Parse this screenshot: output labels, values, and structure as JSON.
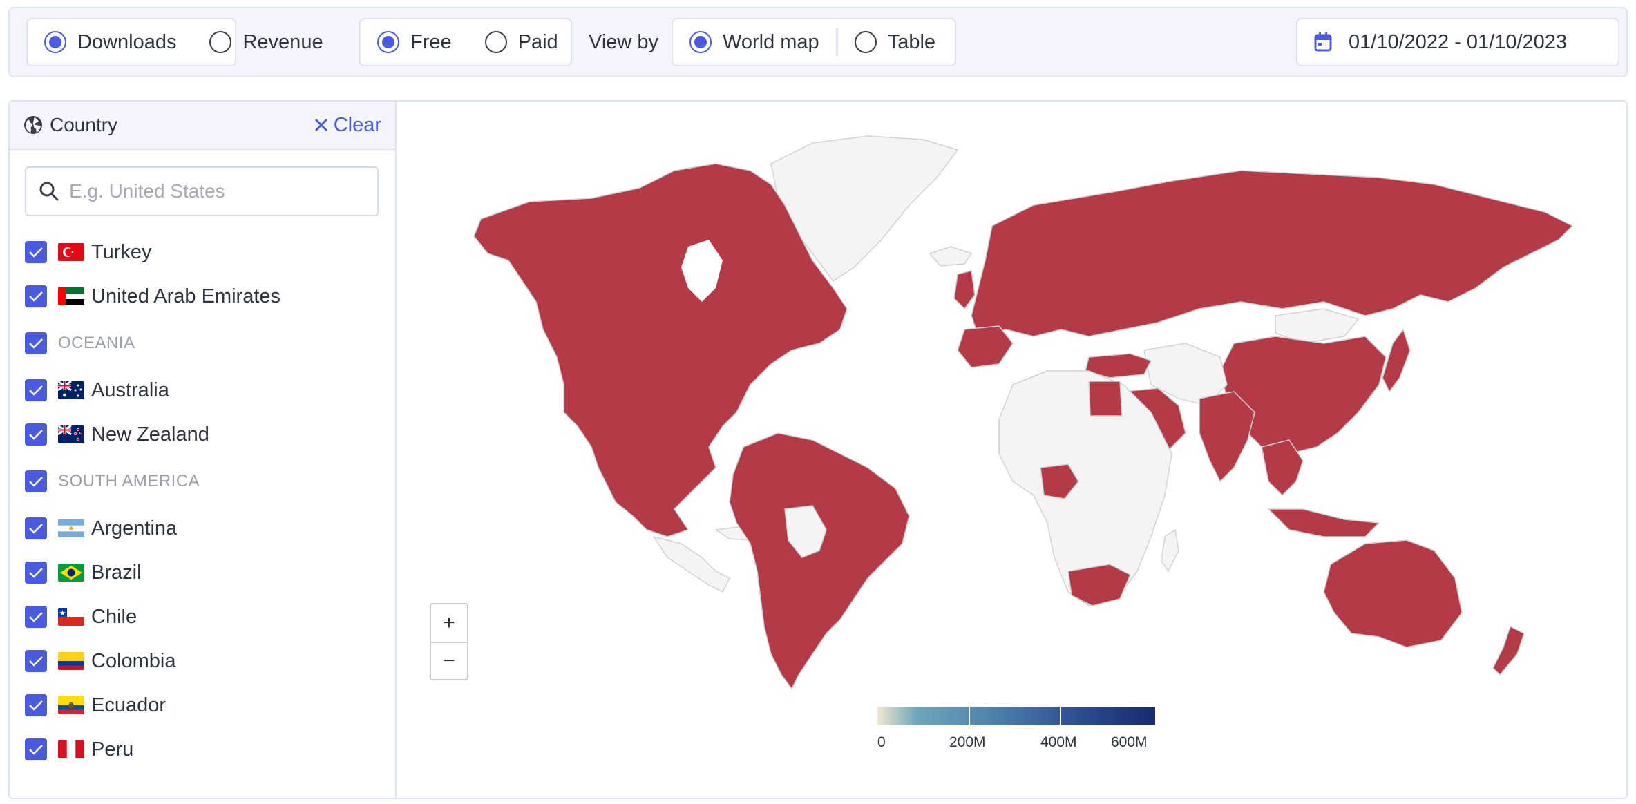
{
  "filters": {
    "metric": {
      "options": [
        "Downloads",
        "Revenue"
      ],
      "selected": "Downloads"
    },
    "pricing": {
      "options": [
        "Free",
        "Paid"
      ],
      "selected": "Free"
    },
    "view_by_label": "View by",
    "view": {
      "options": [
        "World map",
        "Table"
      ],
      "selected": "World map"
    },
    "date_range": "01/10/2022 - 01/10/2023"
  },
  "sidebar": {
    "title": "Country",
    "clear_label": "Clear",
    "search_placeholder": "E.g. United States",
    "items": [
      {
        "type": "country",
        "label": "Turkey",
        "checked": true,
        "flag": "turkey-flag"
      },
      {
        "type": "country",
        "label": "United Arab Emirates",
        "checked": true,
        "flag": "uae-flag"
      },
      {
        "type": "group",
        "label": "OCEANIA",
        "checked": true
      },
      {
        "type": "country",
        "label": "Australia",
        "checked": true,
        "flag": "australia-flag"
      },
      {
        "type": "country",
        "label": "New Zealand",
        "checked": true,
        "flag": "new-zealand-flag"
      },
      {
        "type": "group",
        "label": "SOUTH AMERICA",
        "checked": true
      },
      {
        "type": "country",
        "label": "Argentina",
        "checked": true,
        "flag": "argentina-flag"
      },
      {
        "type": "country",
        "label": "Brazil",
        "checked": true,
        "flag": "brazil-flag"
      },
      {
        "type": "country",
        "label": "Chile",
        "checked": true,
        "flag": "chile-flag"
      },
      {
        "type": "country",
        "label": "Colombia",
        "checked": true,
        "flag": "colombia-flag"
      },
      {
        "type": "country",
        "label": "Ecuador",
        "checked": true,
        "flag": "ecuador-flag"
      },
      {
        "type": "country",
        "label": "Peru",
        "checked": true,
        "flag": "peru-flag"
      }
    ]
  },
  "map": {
    "zoom_in": "+",
    "zoom_out": "−",
    "selected_color": "#b53a48",
    "unselected_color": "#f4f4f4",
    "legend": {
      "labels": [
        "0",
        "200M",
        "400M",
        "600M"
      ]
    }
  },
  "colors": {
    "accent": "#4a5be0",
    "border": "#dfe2f4",
    "bar_background": "#f3f4fc"
  }
}
